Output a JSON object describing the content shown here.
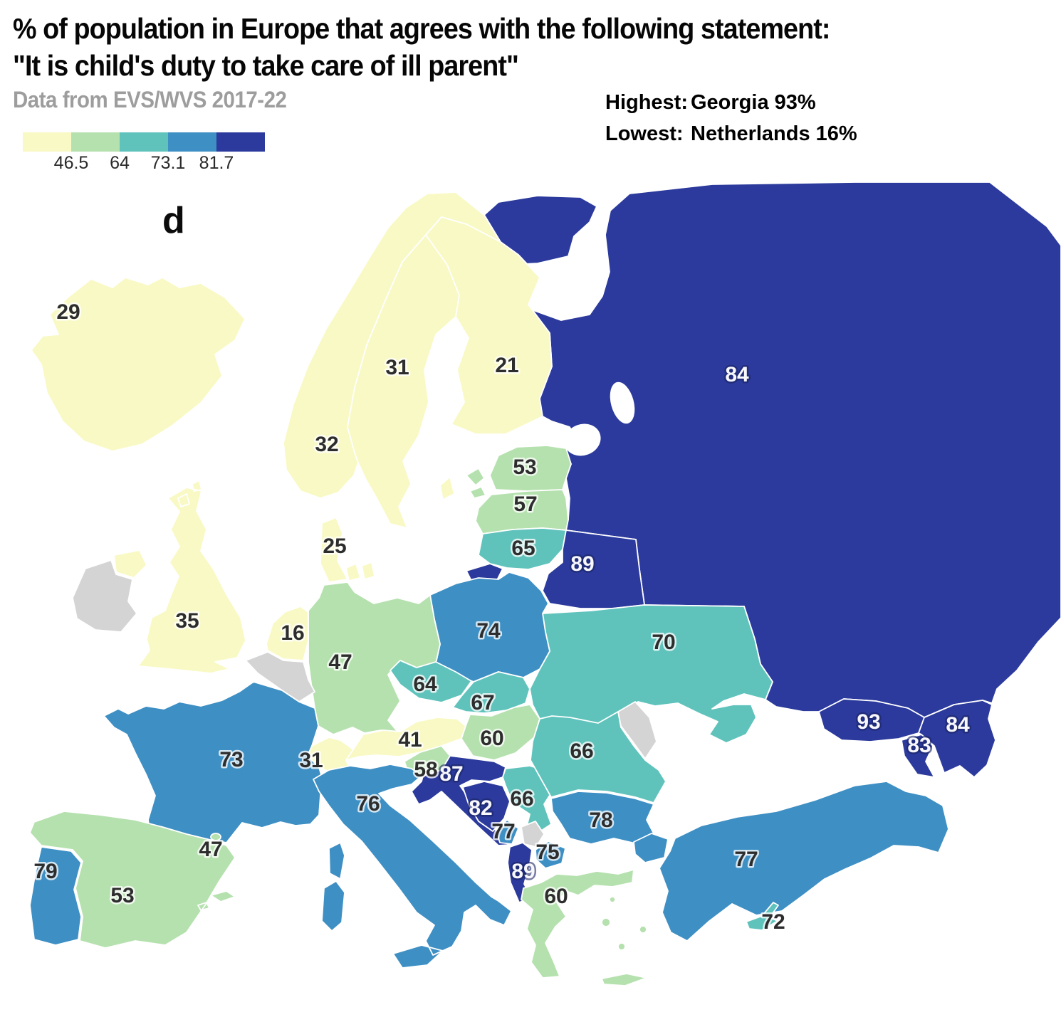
{
  "title": {
    "line1": "% of population in Europe that agrees with the following statement:",
    "line2": "\"It is child's duty to take care of ill parent\""
  },
  "subtitle": "Data from EVS/WVS 2017-22",
  "panel_label": "d",
  "stats": {
    "highest_label": "Highest:",
    "highest_value": "Georgia 93%",
    "lowest_label": "Lowest:",
    "lowest_value": "Netherlands 16%"
  },
  "legend": {
    "breaks": [
      "46.5",
      "64",
      "73.1",
      "81.7"
    ],
    "colors": [
      "#f9f9c5",
      "#b5e1ae",
      "#5fc3bc",
      "#3e8fc4",
      "#2b3a9c"
    ],
    "no_data_color": "#d4d4d4"
  },
  "chart_data": {
    "type": "heatmap",
    "subtype": "choropleth-map",
    "region": "Europe",
    "title": "% of population in Europe that agrees with the following statement: \"It is child's duty to take care of ill parent\"",
    "source": "Data from EVS/WVS 2017-22",
    "classification_breaks": [
      46.5,
      64,
      73.1,
      81.7
    ],
    "palette": [
      "#f9f9c5",
      "#b5e1ae",
      "#5fc3bc",
      "#3e8fc4",
      "#2b3a9c"
    ],
    "highest": {
      "country": "Georgia",
      "value": 93
    },
    "lowest": {
      "country": "Netherlands",
      "value": 16
    },
    "countries": [
      {
        "id": "russia",
        "name": "Russia",
        "value": 84,
        "bucket": 4
      },
      {
        "id": "norway",
        "name": "Norway",
        "value": 32,
        "bucket": 0
      },
      {
        "id": "sweden",
        "name": "Sweden",
        "value": 31,
        "bucket": 0
      },
      {
        "id": "finland",
        "name": "Finland",
        "value": 21,
        "bucket": 0
      },
      {
        "id": "iceland",
        "name": "Iceland",
        "value": 29,
        "bucket": 0
      },
      {
        "id": "denmark",
        "name": "Denmark",
        "value": 25,
        "bucket": 0
      },
      {
        "id": "estonia",
        "name": "Estonia",
        "value": 53,
        "bucket": 1
      },
      {
        "id": "latvia",
        "name": "Latvia",
        "value": 57,
        "bucket": 1
      },
      {
        "id": "lithuania",
        "name": "Lithuania",
        "value": 65,
        "bucket": 2
      },
      {
        "id": "belarus",
        "name": "Belarus",
        "value": 89,
        "bucket": 4
      },
      {
        "id": "ukraine",
        "name": "Ukraine",
        "value": 70,
        "bucket": 2
      },
      {
        "id": "poland",
        "name": "Poland",
        "value": 74,
        "bucket": 3
      },
      {
        "id": "germany",
        "name": "Germany",
        "value": 47,
        "bucket": 1
      },
      {
        "id": "netherlands",
        "name": "Netherlands",
        "value": 16,
        "bucket": 0
      },
      {
        "id": "belgium",
        "name": "Belgium",
        "value": null,
        "bucket": null
      },
      {
        "id": "ireland",
        "name": "Ireland",
        "value": null,
        "bucket": null
      },
      {
        "id": "uk",
        "name": "United Kingdom",
        "value": 35,
        "bucket": 0
      },
      {
        "id": "france",
        "name": "France",
        "value": 73,
        "bucket": 3
      },
      {
        "id": "spain",
        "name": "Spain",
        "value": 53,
        "bucket": 1
      },
      {
        "id": "portugal",
        "name": "Portugal",
        "value": 79,
        "bucket": 3
      },
      {
        "id": "andorra",
        "name": "Andorra",
        "value": 47,
        "bucket": 1
      },
      {
        "id": "switzerland",
        "name": "Switzerland",
        "value": 31,
        "bucket": 0
      },
      {
        "id": "austria",
        "name": "Austria",
        "value": 41,
        "bucket": 0
      },
      {
        "id": "czechia",
        "name": "Czechia",
        "value": 64,
        "bucket": 2
      },
      {
        "id": "slovakia",
        "name": "Slovakia",
        "value": 67,
        "bucket": 2
      },
      {
        "id": "hungary",
        "name": "Hungary",
        "value": 60,
        "bucket": 1
      },
      {
        "id": "slovenia",
        "name": "Slovenia",
        "value": 58,
        "bucket": 1
      },
      {
        "id": "italy",
        "name": "Italy",
        "value": 76,
        "bucket": 3
      },
      {
        "id": "croatia",
        "name": "Croatia",
        "value": 87,
        "bucket": 4
      },
      {
        "id": "bosnia",
        "name": "Bosnia and Herzegovina",
        "value": 82,
        "bucket": 4
      },
      {
        "id": "serbia",
        "name": "Serbia",
        "value": 66,
        "bucket": 2
      },
      {
        "id": "montenegro",
        "name": "Montenegro",
        "value": 77,
        "bucket": 3
      },
      {
        "id": "kosovo",
        "name": "Kosovo",
        "value": null,
        "bucket": null
      },
      {
        "id": "macedonia",
        "name": "North Macedonia",
        "value": 75,
        "bucket": 3
      },
      {
        "id": "albania",
        "name": "Albania",
        "value": 89,
        "bucket": 4
      },
      {
        "id": "greece",
        "name": "Greece",
        "value": 60,
        "bucket": 1
      },
      {
        "id": "bulgaria",
        "name": "Bulgaria",
        "value": 78,
        "bucket": 3
      },
      {
        "id": "romania",
        "name": "Romania",
        "value": 66,
        "bucket": 2
      },
      {
        "id": "moldova",
        "name": "Moldova",
        "value": null,
        "bucket": null
      },
      {
        "id": "turkey",
        "name": "Turkey",
        "value": 77,
        "bucket": 3
      },
      {
        "id": "cyprus",
        "name": "Cyprus",
        "value": 72,
        "bucket": 2
      },
      {
        "id": "georgia",
        "name": "Georgia",
        "value": 93,
        "bucket": 4
      },
      {
        "id": "armenia",
        "name": "Armenia",
        "value": 83,
        "bucket": 4
      },
      {
        "id": "azerbaijan",
        "name": "Azerbaijan",
        "value": 84,
        "bucket": 4
      }
    ]
  }
}
